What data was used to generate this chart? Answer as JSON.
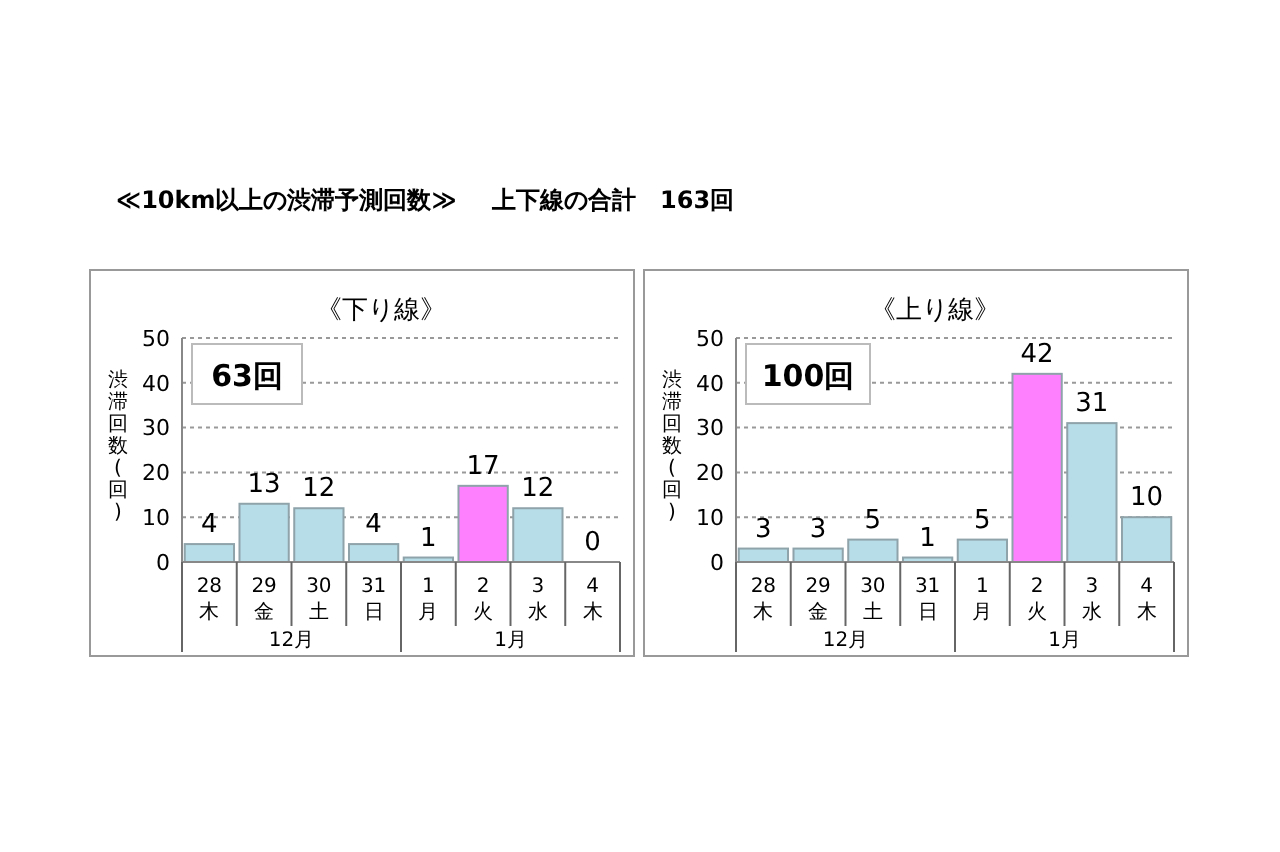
{
  "chart_data": [
    {
      "type": "bar",
      "title": "《下り線》",
      "ylabel": "渋滞回数(回)",
      "categories": [
        "28\n木",
        "29\n金",
        "30\n土",
        "31\n日",
        "1\n月",
        "2\n火",
        "3\n水",
        "4\n木"
      ],
      "values": [
        4,
        13,
        12,
        4,
        1,
        17,
        12,
        0
      ],
      "colors": [
        "#b7dde8",
        "#b7dde8",
        "#b7dde8",
        "#b7dde8",
        "#b7dde8",
        "#ff80ff",
        "#b7dde8",
        "#b7dde8"
      ],
      "ylim": [
        0,
        50
      ],
      "yticks": [
        0,
        10,
        20,
        30,
        40,
        50
      ],
      "grid": "y",
      "data_labels": true,
      "annotations": [
        "≪10km以上の渋滞予測回数≫",
        "上下線の合計　163回",
        "63回",
        "12月",
        "1月"
      ]
    },
    {
      "type": "bar",
      "title": "《上り線》",
      "ylabel": "渋滞回数(回)",
      "categories": [
        "28\n木",
        "29\n金",
        "30\n土",
        "31\n日",
        "1\n月",
        "2\n火",
        "3\n水",
        "4\n木"
      ],
      "values": [
        3,
        3,
        5,
        1,
        5,
        42,
        31,
        10
      ],
      "colors": [
        "#b7dde8",
        "#b7dde8",
        "#b7dde8",
        "#b7dde8",
        "#b7dde8",
        "#ff80ff",
        "#b7dde8",
        "#b7dde8"
      ],
      "ylim": [
        0,
        50
      ],
      "yticks": [
        0,
        10,
        20,
        30,
        40,
        50
      ],
      "grid": "y",
      "data_labels": true,
      "annotations": [
        "100回",
        "12月",
        "1月"
      ]
    }
  ]
}
